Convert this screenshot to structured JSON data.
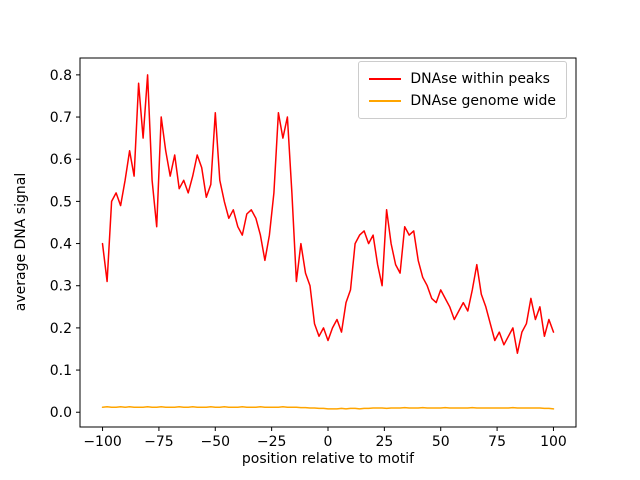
{
  "chart_data": {
    "type": "line",
    "title": "",
    "xlabel": "position relative to motif",
    "ylabel": "average DNA signal",
    "xlim": [
      -110,
      110
    ],
    "ylim": [
      -0.035,
      0.84
    ],
    "grid": false,
    "legend_position": "upper right",
    "xticks": [
      -100,
      -75,
      -50,
      -25,
      0,
      25,
      50,
      75,
      100
    ],
    "xtick_labels": [
      "−100",
      "−75",
      "−50",
      "−25",
      "0",
      "25",
      "50",
      "75",
      "100"
    ],
    "yticks": [
      0.0,
      0.1,
      0.2,
      0.3,
      0.4,
      0.5,
      0.6,
      0.7,
      0.8
    ],
    "ytick_labels": [
      "0.0",
      "0.1",
      "0.2",
      "0.3",
      "0.4",
      "0.5",
      "0.6",
      "0.7",
      "0.8"
    ],
    "x": [
      -100,
      -98,
      -96,
      -94,
      -92,
      -90,
      -88,
      -86,
      -84,
      -82,
      -80,
      -78,
      -76,
      -74,
      -72,
      -70,
      -68,
      -66,
      -64,
      -62,
      -60,
      -58,
      -56,
      -54,
      -52,
      -50,
      -48,
      -46,
      -44,
      -42,
      -40,
      -38,
      -36,
      -34,
      -32,
      -30,
      -28,
      -26,
      -24,
      -22,
      -20,
      -18,
      -16,
      -14,
      -12,
      -10,
      -8,
      -6,
      -4,
      -2,
      0,
      2,
      4,
      6,
      8,
      10,
      12,
      14,
      16,
      18,
      20,
      22,
      24,
      26,
      28,
      30,
      32,
      34,
      36,
      38,
      40,
      42,
      44,
      46,
      48,
      50,
      52,
      54,
      56,
      58,
      60,
      62,
      64,
      66,
      68,
      70,
      72,
      74,
      76,
      78,
      80,
      82,
      84,
      86,
      88,
      90,
      92,
      94,
      96,
      98,
      100
    ],
    "series": [
      {
        "name": "DNAse within peaks",
        "color": "#ff0000",
        "values": [
          0.4,
          0.31,
          0.5,
          0.52,
          0.49,
          0.55,
          0.62,
          0.56,
          0.78,
          0.65,
          0.8,
          0.55,
          0.44,
          0.7,
          0.62,
          0.56,
          0.61,
          0.53,
          0.55,
          0.52,
          0.56,
          0.61,
          0.58,
          0.51,
          0.54,
          0.71,
          0.55,
          0.5,
          0.46,
          0.48,
          0.44,
          0.42,
          0.47,
          0.48,
          0.46,
          0.42,
          0.36,
          0.42,
          0.52,
          0.71,
          0.65,
          0.7,
          0.52,
          0.31,
          0.4,
          0.33,
          0.3,
          0.21,
          0.18,
          0.2,
          0.17,
          0.2,
          0.22,
          0.19,
          0.26,
          0.29,
          0.4,
          0.42,
          0.43,
          0.4,
          0.42,
          0.35,
          0.3,
          0.48,
          0.4,
          0.35,
          0.33,
          0.44,
          0.42,
          0.43,
          0.36,
          0.32,
          0.3,
          0.27,
          0.26,
          0.29,
          0.27,
          0.25,
          0.22,
          0.24,
          0.26,
          0.24,
          0.29,
          0.35,
          0.28,
          0.25,
          0.21,
          0.17,
          0.19,
          0.16,
          0.18,
          0.2,
          0.14,
          0.19,
          0.21,
          0.27,
          0.22,
          0.25,
          0.18,
          0.22,
          0.19
        ]
      },
      {
        "name": "DNAse genome wide",
        "color": "#ffa500",
        "values": [
          0.012,
          0.013,
          0.012,
          0.012,
          0.013,
          0.012,
          0.013,
          0.012,
          0.012,
          0.012,
          0.013,
          0.012,
          0.012,
          0.013,
          0.012,
          0.012,
          0.012,
          0.013,
          0.012,
          0.012,
          0.013,
          0.012,
          0.012,
          0.012,
          0.013,
          0.012,
          0.012,
          0.013,
          0.012,
          0.012,
          0.012,
          0.013,
          0.012,
          0.012,
          0.012,
          0.013,
          0.012,
          0.012,
          0.012,
          0.012,
          0.013,
          0.012,
          0.012,
          0.012,
          0.011,
          0.011,
          0.01,
          0.01,
          0.009,
          0.009,
          0.008,
          0.008,
          0.008,
          0.009,
          0.008,
          0.009,
          0.009,
          0.008,
          0.009,
          0.009,
          0.01,
          0.01,
          0.01,
          0.009,
          0.01,
          0.01,
          0.01,
          0.011,
          0.01,
          0.01,
          0.01,
          0.011,
          0.01,
          0.01,
          0.01,
          0.01,
          0.011,
          0.01,
          0.01,
          0.01,
          0.01,
          0.01,
          0.011,
          0.01,
          0.01,
          0.01,
          0.01,
          0.01,
          0.01,
          0.01,
          0.01,
          0.011,
          0.01,
          0.01,
          0.01,
          0.01,
          0.01,
          0.01,
          0.009,
          0.009,
          0.008
        ]
      }
    ]
  }
}
